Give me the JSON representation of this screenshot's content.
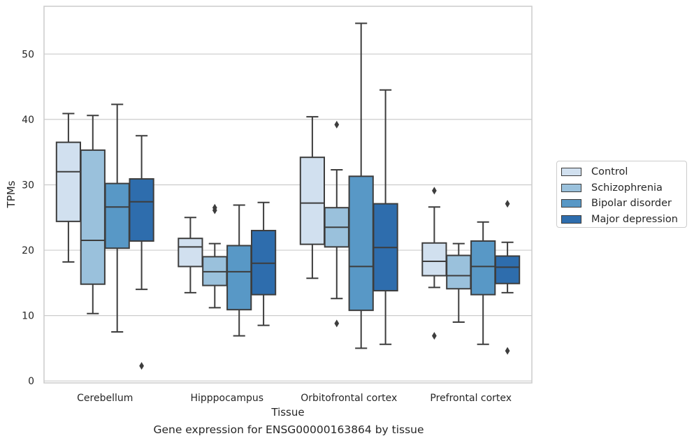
{
  "chart_data": {
    "type": "box",
    "caption": "Gene expression for ENSG00000163864 by tissue",
    "xlabel": "Tissue",
    "ylabel": "TPMs",
    "ylim": [
      -0.3,
      57.3
    ],
    "yticks": [
      0,
      10,
      20,
      30,
      40,
      50
    ],
    "grid": "horizontal",
    "legend_position": "right",
    "categories": [
      "Cerebellum",
      "Hipppocampus",
      "Orbitofrontal cortex",
      "Prefrontal cortex"
    ],
    "series": [
      {
        "name": "Control",
        "color": "#d1e0ef",
        "boxes": [
          {
            "whisker_low": 18.2,
            "q1": 24.4,
            "median": 32.0,
            "q3": 36.5,
            "whisker_high": 40.9,
            "outliers": []
          },
          {
            "whisker_low": 13.5,
            "q1": 17.5,
            "median": 20.5,
            "q3": 21.8,
            "whisker_high": 25.0,
            "outliers": []
          },
          {
            "whisker_low": 15.7,
            "q1": 20.9,
            "median": 27.2,
            "q3": 34.2,
            "whisker_high": 40.4,
            "outliers": []
          },
          {
            "whisker_low": 14.3,
            "q1": 16.1,
            "median": 18.3,
            "q3": 21.1,
            "whisker_high": 26.6,
            "outliers": [
              29.1,
              6.9
            ]
          }
        ]
      },
      {
        "name": "Schizophrenia",
        "color": "#9ac1dc",
        "boxes": [
          {
            "whisker_low": 10.3,
            "q1": 14.8,
            "median": 21.5,
            "q3": 35.3,
            "whisker_high": 40.6,
            "outliers": []
          },
          {
            "whisker_low": 11.2,
            "q1": 14.6,
            "median": 16.7,
            "q3": 19.0,
            "whisker_high": 21.0,
            "outliers": [
              26.1,
              26.5
            ]
          },
          {
            "whisker_low": 12.6,
            "q1": 20.5,
            "median": 23.5,
            "q3": 26.5,
            "whisker_high": 32.3,
            "outliers": [
              39.2,
              8.8
            ]
          },
          {
            "whisker_low": 9.0,
            "q1": 14.1,
            "median": 16.1,
            "q3": 19.2,
            "whisker_high": 21.0,
            "outliers": []
          }
        ]
      },
      {
        "name": "Bipolar disorder",
        "color": "#5898c6",
        "boxes": [
          {
            "whisker_low": 7.5,
            "q1": 20.3,
            "median": 26.6,
            "q3": 30.2,
            "whisker_high": 42.3,
            "outliers": []
          },
          {
            "whisker_low": 6.9,
            "q1": 10.9,
            "median": 16.7,
            "q3": 20.7,
            "whisker_high": 26.9,
            "outliers": []
          },
          {
            "whisker_low": 5.0,
            "q1": 10.8,
            "median": 17.5,
            "q3": 31.3,
            "whisker_high": 54.7,
            "outliers": []
          },
          {
            "whisker_low": 5.6,
            "q1": 13.2,
            "median": 17.5,
            "q3": 21.4,
            "whisker_high": 24.3,
            "outliers": []
          }
        ]
      },
      {
        "name": "Major depression",
        "color": "#2e6dad",
        "boxes": [
          {
            "whisker_low": 14.0,
            "q1": 21.4,
            "median": 27.4,
            "q3": 30.9,
            "whisker_high": 37.5,
            "outliers": [
              2.3
            ]
          },
          {
            "whisker_low": 8.5,
            "q1": 13.2,
            "median": 18.0,
            "q3": 23.0,
            "whisker_high": 27.3,
            "outliers": []
          },
          {
            "whisker_low": 5.6,
            "q1": 13.8,
            "median": 20.4,
            "q3": 27.1,
            "whisker_high": 44.5,
            "outliers": []
          },
          {
            "whisker_low": 13.5,
            "q1": 14.9,
            "median": 17.4,
            "q3": 19.1,
            "whisker_high": 21.2,
            "outliers": [
              27.1,
              4.6
            ]
          }
        ]
      }
    ]
  }
}
